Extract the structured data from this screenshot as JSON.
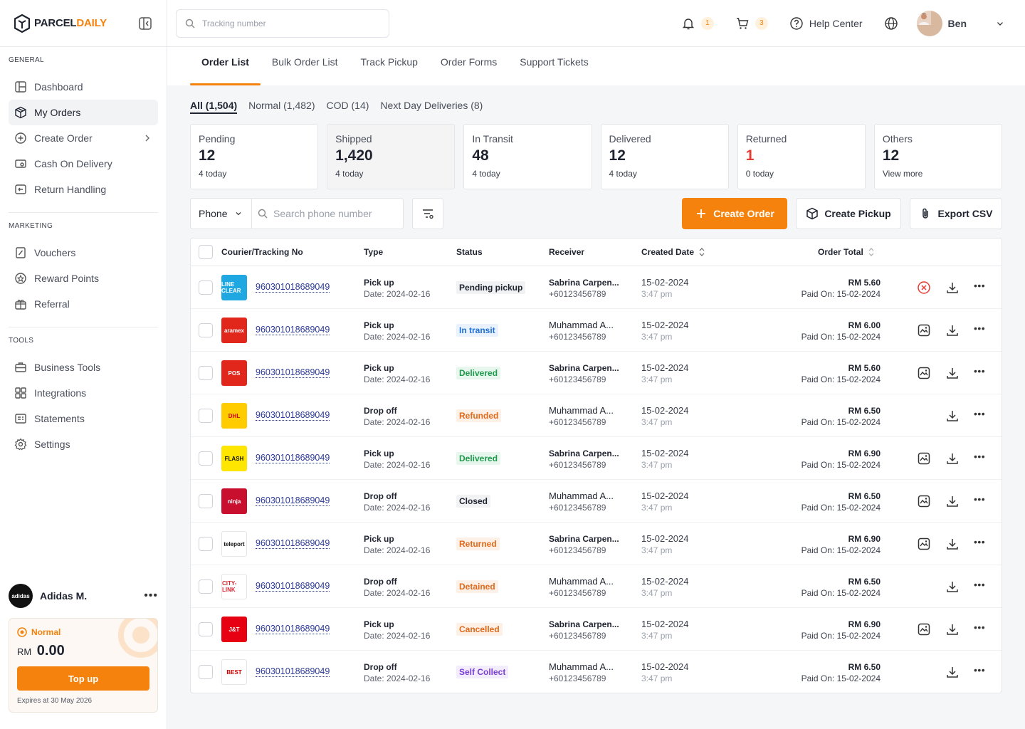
{
  "brand": {
    "name_a": "PARCEL",
    "name_b": "DAILY",
    "accent": "#f5820d"
  },
  "search": {
    "placeholder": "Tracking number"
  },
  "topbar": {
    "notif_count": "1",
    "cart_count": "3",
    "help_label": "Help Center",
    "user_name": "Ben"
  },
  "sidebar": {
    "general_label": "GENERAL",
    "general": [
      {
        "label": "Dashboard",
        "icon": "dashboard-icon"
      },
      {
        "label": "My Orders",
        "icon": "box-icon"
      },
      {
        "label": "Create Order",
        "icon": "plus-circle-icon"
      },
      {
        "label": "Cash On Delivery",
        "icon": "cash-icon"
      },
      {
        "label": "Return Handling",
        "icon": "return-icon"
      }
    ],
    "marketing_label": "MARKETING",
    "marketing": [
      {
        "label": "Vouchers",
        "icon": "voucher-icon"
      },
      {
        "label": "Reward Points",
        "icon": "reward-icon"
      },
      {
        "label": "Referral",
        "icon": "referral-icon"
      }
    ],
    "tools_label": "TOOLS",
    "tools": [
      {
        "label": "Business Tools",
        "icon": "briefcase-icon"
      },
      {
        "label": "Integrations",
        "icon": "integrations-icon"
      },
      {
        "label": "Statements",
        "icon": "statements-icon"
      },
      {
        "label": "Settings",
        "icon": "gear-icon"
      }
    ]
  },
  "account": {
    "avatar_text": "adidas",
    "name": "Adidas M.",
    "tier": "Normal",
    "currency": "RM",
    "balance": "0.00",
    "topup_label": "Top up",
    "expiry": "Expires at 30 May 2026"
  },
  "tabs": [
    "Order List",
    "Bulk Order List",
    "Track Pickup",
    "Order Forms",
    "Support Tickets"
  ],
  "subtabs": [
    "All (1,504)",
    "Normal (1,482)",
    "COD (14)",
    "Next Day Deliveries (8)"
  ],
  "cards": [
    {
      "label": "Pending",
      "value": "12",
      "sub": "4 today"
    },
    {
      "label": "Shipped",
      "value": "1,420",
      "sub": "4 today"
    },
    {
      "label": "In Transit",
      "value": "48",
      "sub": "4 today"
    },
    {
      "label": "Delivered",
      "value": "12",
      "sub": "4 today"
    },
    {
      "label": "Returned",
      "value": "1",
      "sub": "0 today"
    },
    {
      "label": "Others",
      "value": "12",
      "sub": "View more"
    }
  ],
  "filters": {
    "phone_label": "Phone",
    "phone_placeholder": "Search phone number",
    "create_order": "Create Order",
    "create_pickup": "Create Pickup",
    "export_csv": "Export CSV"
  },
  "table": {
    "headers": {
      "courier": "Courier/Tracking No",
      "type": "Type",
      "status": "Status",
      "receiver": "Receiver",
      "created": "Created Date",
      "total": "Order Total"
    },
    "rows": [
      {
        "courier_text": "LINE CLEAR",
        "courier_bg": "#1ea7e1",
        "courier_fg": "#fff",
        "tracking": "960301018689049",
        "type": "Pick up",
        "date": "Date: 2024-02-16",
        "status": "Pending pickup",
        "status_fg": "#1f2430",
        "status_bg": "#f1f2f4",
        "receiver": "Sabrina Carpen...",
        "phone": "+60123456789",
        "created": "15-02-2024",
        "time": "3:47 pm",
        "total": "RM 5.60",
        "paid": "Paid On: 15-02-2024",
        "lead_icon": "cancel-icon"
      },
      {
        "courier_text": "aramex",
        "courier_bg": "#e1261c",
        "courier_fg": "#fff",
        "tracking": "960301018689049",
        "type": "Pick up",
        "date": "Date: 2024-02-16",
        "status": "In transit",
        "status_fg": "#1e6fd9",
        "status_bg": "#eaf2fd",
        "receiver": "Muhammad A...",
        "phone": "+60123456789",
        "created": "15-02-2024",
        "time": "3:47 pm",
        "total": "RM 6.00",
        "paid": "Paid On: 15-02-2024",
        "lead_icon": "label-icon"
      },
      {
        "courier_text": "POS",
        "courier_bg": "#e1261c",
        "courier_fg": "#fff",
        "tracking": "960301018689049",
        "type": "Pick up",
        "date": "Date: 2024-02-16",
        "status": "Delivered",
        "status_fg": "#1e9a4c",
        "status_bg": "#e8f7ee",
        "receiver": "Sabrina Carpen...",
        "phone": "+60123456789",
        "created": "15-02-2024",
        "time": "3:47 pm",
        "total": "RM 5.60",
        "paid": "Paid On: 15-02-2024",
        "lead_icon": "label-icon"
      },
      {
        "courier_text": "DHL",
        "courier_bg": "#ffcc00",
        "courier_fg": "#d40511",
        "tracking": "960301018689049",
        "type": "Drop off",
        "date": "Date: 2024-02-16",
        "status": "Refunded",
        "status_fg": "#e06a1b",
        "status_bg": "#fdf0e6",
        "receiver": "Muhammad A...",
        "phone": "+60123456789",
        "created": "15-02-2024",
        "time": "3:47 pm",
        "total": "RM 6.50",
        "paid": "Paid On: 15-02-2024",
        "lead_icon": ""
      },
      {
        "courier_text": "FLASH",
        "courier_bg": "#ffe600",
        "courier_fg": "#111",
        "tracking": "960301018689049",
        "type": "Pick up",
        "date": "Date: 2024-02-16",
        "status": "Delivered",
        "status_fg": "#1e9a4c",
        "status_bg": "#e8f7ee",
        "receiver": "Sabrina Carpen...",
        "phone": "+60123456789",
        "created": "15-02-2024",
        "time": "3:47 pm",
        "total": "RM 6.90",
        "paid": "Paid On: 15-02-2024",
        "lead_icon": "label-icon"
      },
      {
        "courier_text": "ninja",
        "courier_bg": "#c8102e",
        "courier_fg": "#fff",
        "tracking": "960301018689049",
        "type": "Drop off",
        "date": "Date: 2024-02-16",
        "status": "Closed",
        "status_fg": "#1f2430",
        "status_bg": "#f1f2f4",
        "receiver": "Muhammad A...",
        "phone": "+60123456789",
        "created": "15-02-2024",
        "time": "3:47 pm",
        "total": "RM 6.50",
        "paid": "Paid On: 15-02-2024",
        "lead_icon": "label-icon"
      },
      {
        "courier_text": "teleport",
        "courier_bg": "#ffffff",
        "courier_fg": "#111",
        "tracking": "960301018689049",
        "type": "Pick up",
        "date": "Date: 2024-02-16",
        "status": "Returned",
        "status_fg": "#e06a1b",
        "status_bg": "#fdf0e6",
        "receiver": "Sabrina Carpen...",
        "phone": "+60123456789",
        "created": "15-02-2024",
        "time": "3:47 pm",
        "total": "RM 6.90",
        "paid": "Paid On: 15-02-2024",
        "lead_icon": "label-icon"
      },
      {
        "courier_text": "CITY-LINK",
        "courier_bg": "#ffffff",
        "courier_fg": "#d8262e",
        "tracking": "960301018689049",
        "type": "Drop off",
        "date": "Date: 2024-02-16",
        "status": "Detained",
        "status_fg": "#e06a1b",
        "status_bg": "#fdf0e6",
        "receiver": "Muhammad A...",
        "phone": "+60123456789",
        "created": "15-02-2024",
        "time": "3:47 pm",
        "total": "RM 6.50",
        "paid": "Paid On: 15-02-2024",
        "lead_icon": ""
      },
      {
        "courier_text": "J&T",
        "courier_bg": "#e60012",
        "courier_fg": "#fff",
        "tracking": "960301018689049",
        "type": "Pick up",
        "date": "Date: 2024-02-16",
        "status": "Cancelled",
        "status_fg": "#e06a1b",
        "status_bg": "#fdf0e6",
        "receiver": "Sabrina Carpen...",
        "phone": "+60123456789",
        "created": "15-02-2024",
        "time": "3:47 pm",
        "total": "RM 6.90",
        "paid": "Paid On: 15-02-2024",
        "lead_icon": "label-icon"
      },
      {
        "courier_text": "BEST",
        "courier_bg": "#ffffff",
        "courier_fg": "#d40000",
        "tracking": "960301018689049",
        "type": "Drop off",
        "date": "Date: 2024-02-16",
        "status": "Self Collect",
        "status_fg": "#7a3fd1",
        "status_bg": "#f3ecfd",
        "receiver": "Muhammad A...",
        "phone": "+60123456789",
        "created": "15-02-2024",
        "time": "3:47 pm",
        "total": "RM 6.50",
        "paid": "Paid On: 15-02-2024",
        "lead_icon": ""
      }
    ]
  }
}
